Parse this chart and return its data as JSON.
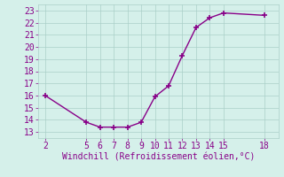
{
  "x": [
    2,
    5,
    6,
    7,
    8,
    9,
    10,
    11,
    12,
    13,
    14,
    15,
    18
  ],
  "y": [
    16.0,
    13.8,
    13.4,
    13.4,
    13.4,
    13.8,
    15.9,
    16.8,
    19.3,
    21.6,
    22.4,
    22.8,
    22.6
  ],
  "x_ticks": [
    2,
    5,
    6,
    7,
    8,
    9,
    10,
    11,
    12,
    13,
    14,
    15,
    18
  ],
  "y_ticks": [
    13,
    14,
    15,
    16,
    17,
    18,
    19,
    20,
    21,
    22,
    23
  ],
  "xlim": [
    1.5,
    19.0
  ],
  "ylim": [
    12.5,
    23.5
  ],
  "xlabel": "Windchill (Refroidissement éolien,°C)",
  "line_color": "#880088",
  "marker_color": "#880088",
  "bg_color": "#d5f0ea",
  "grid_color": "#aacfc8",
  "font_color": "#880088",
  "tick_fontsize": 7,
  "label_fontsize": 7
}
